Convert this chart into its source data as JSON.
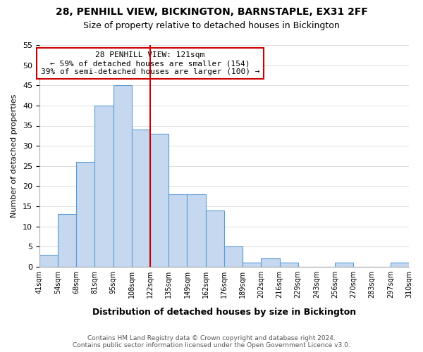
{
  "title": "28, PENHILL VIEW, BICKINGTON, BARNSTAPLE, EX31 2FF",
  "subtitle": "Size of property relative to detached houses in Bickington",
  "xlabel": "Distribution of detached houses by size in Bickington",
  "ylabel": "Number of detached properties",
  "bin_edges": [
    "41sqm",
    "54sqm",
    "68sqm",
    "81sqm",
    "95sqm",
    "108sqm",
    "122sqm",
    "135sqm",
    "149sqm",
    "162sqm",
    "176sqm",
    "189sqm",
    "202sqm",
    "216sqm",
    "229sqm",
    "243sqm",
    "256sqm",
    "270sqm",
    "283sqm",
    "297sqm",
    "310sqm"
  ],
  "values": [
    3,
    13,
    26,
    40,
    45,
    34,
    33,
    18,
    18,
    14,
    5,
    1,
    2,
    1,
    0,
    0,
    1,
    0,
    0,
    1
  ],
  "bar_color": "#c5d8f0",
  "bar_edge_color": "#5b9bd5",
  "marker_line_index": 6,
  "marker_line_color": "#cc0000",
  "ylim": [
    0,
    55
  ],
  "yticks": [
    0,
    5,
    10,
    15,
    20,
    25,
    30,
    35,
    40,
    45,
    50,
    55
  ],
  "annotation_title": "28 PENHILL VIEW: 121sqm",
  "annotation_line1": "← 59% of detached houses are smaller (154)",
  "annotation_line2": "39% of semi-detached houses are larger (100) →",
  "annotation_box_color": "#ffffff",
  "annotation_box_edge": "#cc0000",
  "footnote1": "Contains HM Land Registry data © Crown copyright and database right 2024.",
  "footnote2": "Contains public sector information licensed under the Open Government Licence v3.0.",
  "background_color": "#ffffff",
  "grid_color": "#dddddd"
}
